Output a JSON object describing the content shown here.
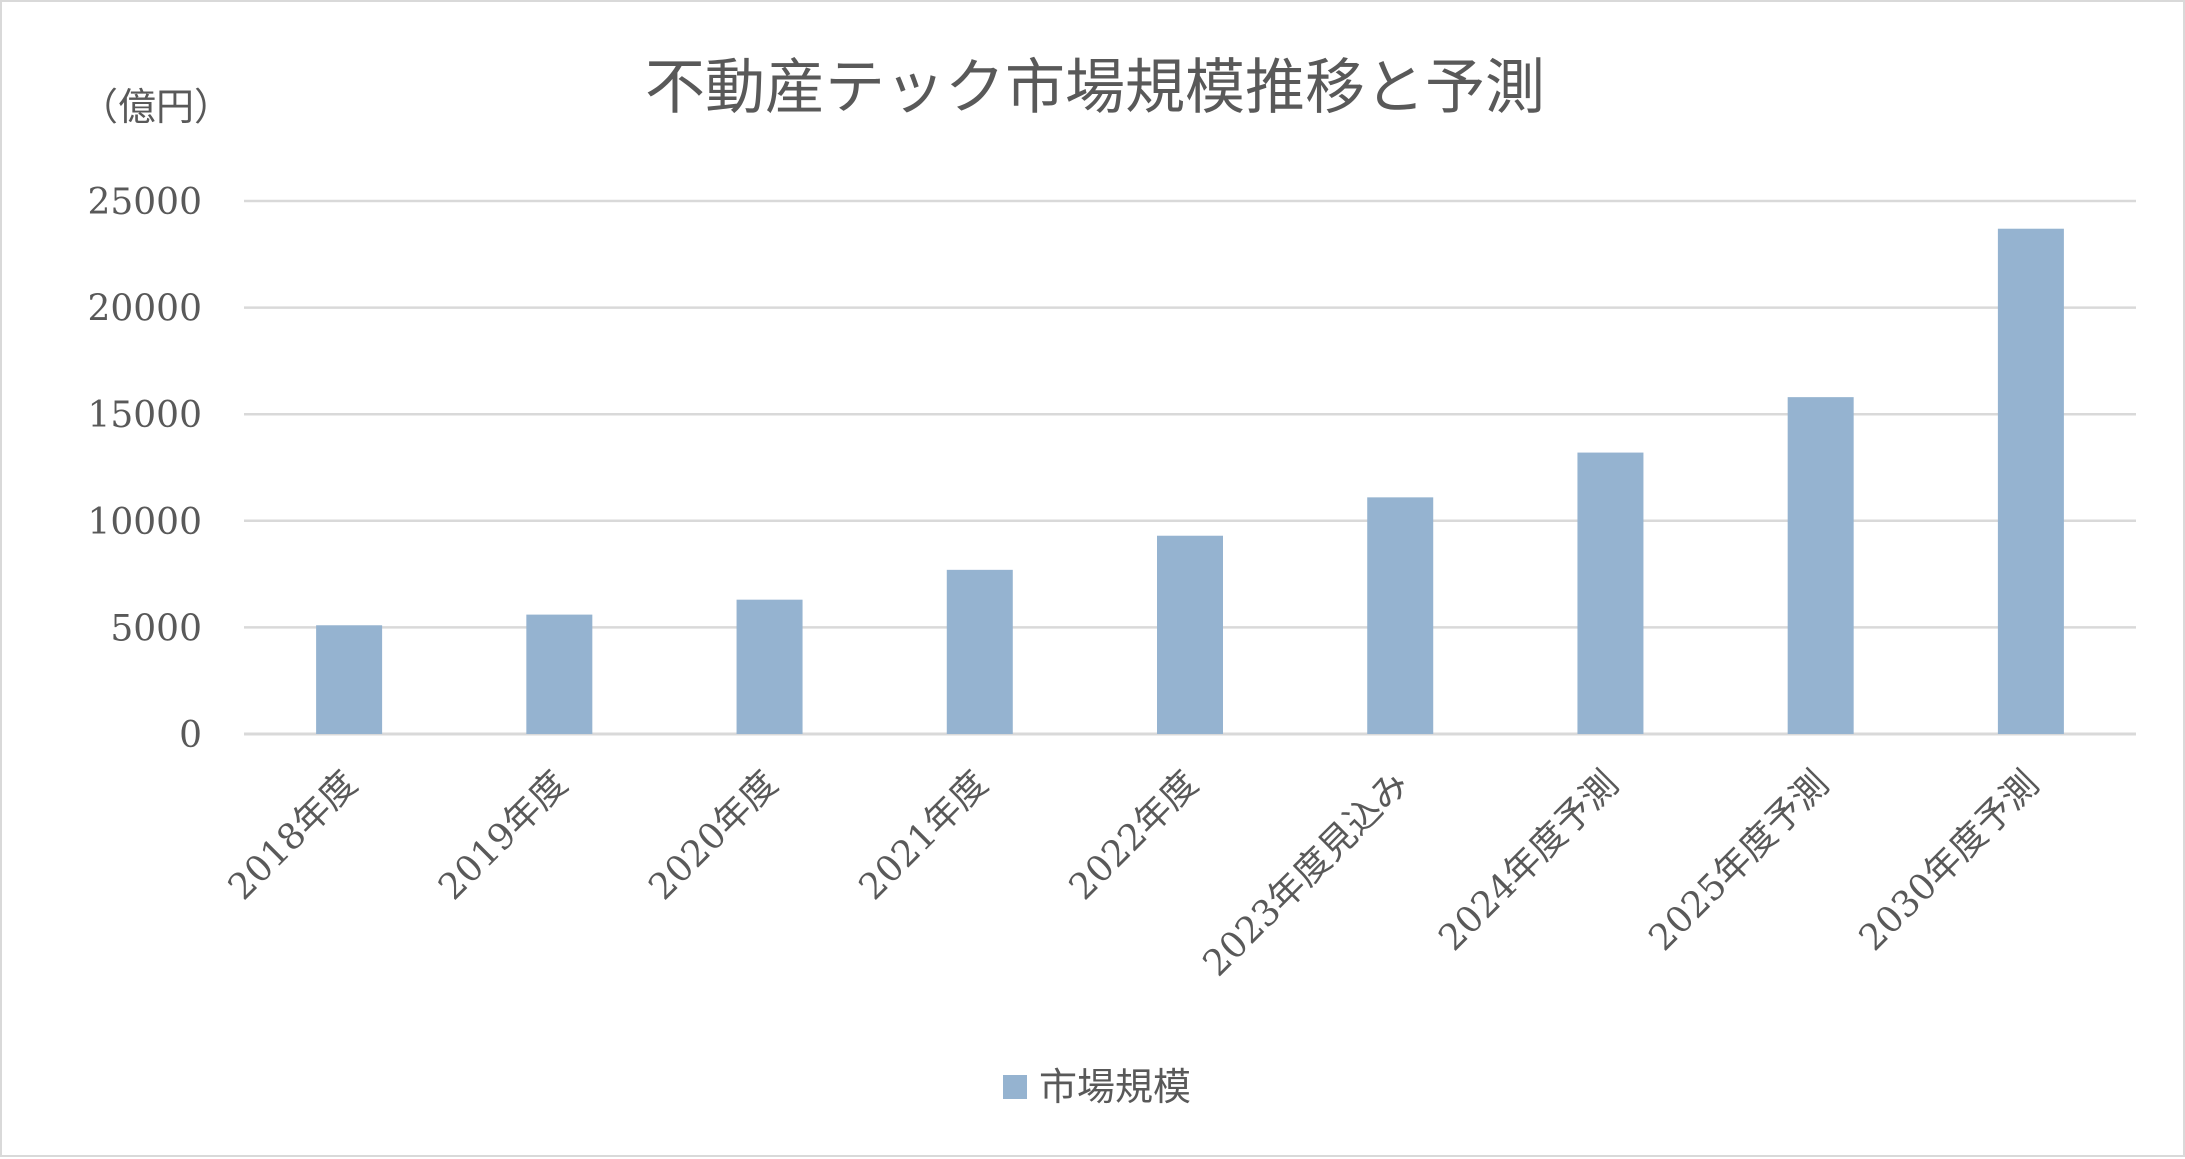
{
  "chart_data": {
    "type": "bar",
    "title": "不動産テック市場規模推移と予測",
    "unit_label": "（億円）",
    "categories": [
      "2018年度",
      "2019年度",
      "2020年度",
      "2021年度",
      "2022年度",
      "2023年度見込み",
      "2024年度予測",
      "2025年度予測",
      "2030年度予測"
    ],
    "series": [
      {
        "name": "市場規模",
        "values": [
          5100,
          5600,
          6300,
          7700,
          9300,
          11100,
          13200,
          15800,
          23700
        ],
        "color": "#95b3d0"
      }
    ],
    "y_ticks": [
      "0",
      "5000",
      "10000",
      "15000",
      "20000",
      "25000"
    ],
    "ylim": [
      0,
      25000
    ],
    "grid": true,
    "gridline_color": "#d9d9d9",
    "legend_position": "bottom"
  }
}
